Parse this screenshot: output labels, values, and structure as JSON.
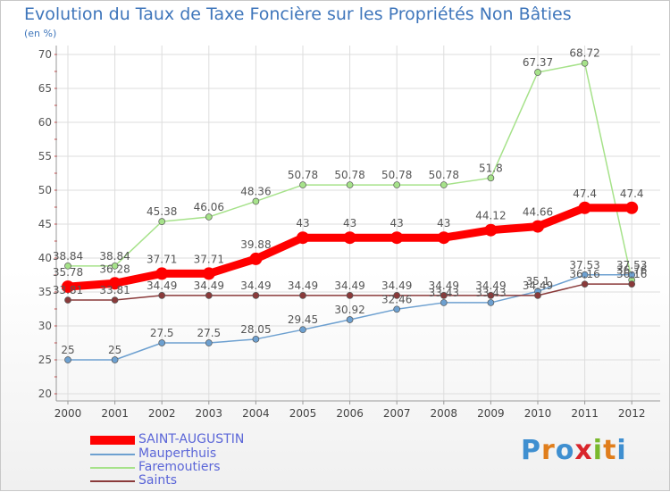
{
  "chart_data": {
    "type": "line",
    "title": "Evolution du Taux de Taxe Foncière sur les Propriétés Non Bâties",
    "unit": "(en %)",
    "x": [
      "2000",
      "2001",
      "2002",
      "2003",
      "2004",
      "2005",
      "2006",
      "2007",
      "2008",
      "2009",
      "2010",
      "2011",
      "2012"
    ],
    "ylim": [
      20,
      70
    ],
    "yticks": [
      20,
      25,
      30,
      35,
      40,
      45,
      50,
      55,
      60,
      65,
      70
    ],
    "grid": true,
    "legend": "bottom-left",
    "series": [
      {
        "name": "SAINT-AUGUSTIN",
        "color": "#ff0000",
        "values": [
          35.78,
          36.28,
          37.71,
          37.71,
          39.88,
          43,
          43,
          43,
          43,
          44.12,
          44.66,
          47.4,
          47.4
        ],
        "labels": [
          "35.78",
          "36.28",
          "37.71",
          "37.71",
          "39.88",
          "43",
          "43",
          "43",
          "43",
          "44.12",
          "44.66",
          "47.4",
          "47.4"
        ]
      },
      {
        "name": "Mauperthuis",
        "color": "#6da0d0",
        "values": [
          25,
          25,
          27.5,
          27.5,
          28.05,
          29.45,
          30.92,
          32.46,
          33.43,
          33.43,
          35.1,
          37.53,
          37.53
        ],
        "labels": [
          "25",
          "25",
          "27.5",
          "27.5",
          "28.05",
          "29.45",
          "30.92",
          "32.46",
          "33.43",
          "33.43",
          "35.1",
          "37.53",
          "37.53"
        ]
      },
      {
        "name": "Faremoutiers",
        "color": "#a6e28a",
        "values": [
          38.84,
          38.84,
          45.38,
          46.06,
          48.36,
          50.78,
          50.78,
          50.78,
          50.78,
          51.8,
          67.37,
          68.72,
          36.76
        ],
        "labels": [
          "38.84",
          "38.84",
          "45.38",
          "46.06",
          "48.36",
          "50.78",
          "50.78",
          "50.78",
          "50.78",
          "51.8",
          "67.37",
          "68.72",
          "36.76"
        ]
      },
      {
        "name": "Saints",
        "color": "#8a3a3a",
        "values": [
          33.81,
          33.81,
          34.49,
          34.49,
          34.49,
          34.49,
          34.49,
          34.49,
          34.49,
          34.49,
          34.49,
          36.16,
          36.16
        ],
        "labels": [
          "33.81",
          "33.81",
          "34.49",
          "34.49",
          "34.49",
          "34.49",
          "34.49",
          "34.49",
          "34.49",
          "34.49",
          "34.49",
          "36.16",
          "36.16"
        ]
      }
    ]
  },
  "branding": {
    "logo_letters": [
      "P",
      "r",
      "o",
      "x",
      "i",
      "t",
      "i"
    ]
  }
}
